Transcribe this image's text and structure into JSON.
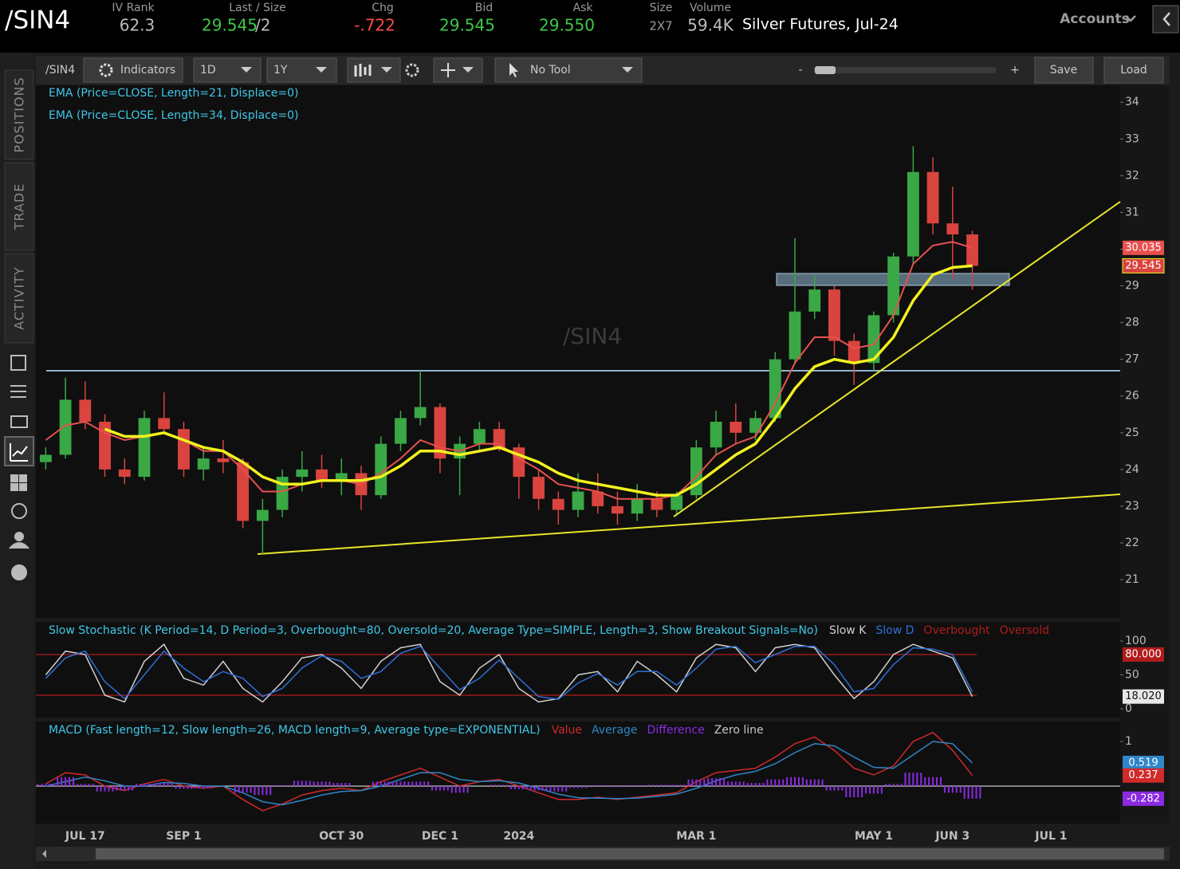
{
  "header": {
    "symbol": "/SIN4",
    "fields": [
      {
        "label": "IV Rank",
        "value": "62.3"
      },
      {
        "label": "Last / Size",
        "value": "29.545",
        "size": "/2"
      },
      {
        "label": "Chg",
        "value": "-.722"
      },
      {
        "label": "Bid",
        "value": "29.545"
      },
      {
        "label": "Ask",
        "value": "29.550"
      },
      {
        "label": "Size",
        "value": "2X7"
      },
      {
        "label": "Volume",
        "value": "59.4K"
      }
    ],
    "description": "Silver Futures, Jul-24",
    "accounts": "Accounts"
  },
  "side_tabs": [
    "POSITIONS",
    "TRADE",
    "ACTIVITY"
  ],
  "toolbar": {
    "symbol": "/SIN4",
    "indicators": "Indicators",
    "aggregation": "1D",
    "period": "1Y",
    "tool": "No Tool",
    "zoom_out": "-",
    "zoom_in": "+",
    "save": "Save",
    "load": "Load"
  },
  "chart_data": [
    {
      "type": "candlestick",
      "categories": [
        null,
        null,
        "JUL 17",
        null,
        null,
        null,
        null,
        "SEP 1",
        null,
        null,
        null,
        null,
        null,
        null,
        null,
        "OCT 30",
        null,
        null,
        null,
        null,
        "DEC 1",
        null,
        null,
        null,
        "2024",
        null,
        null,
        null,
        null,
        null,
        null,
        null,
        null,
        "MAR 1",
        null,
        null,
        null,
        null,
        null,
        null,
        null,
        null,
        "MAY 1",
        null,
        null,
        null,
        "JUN 3",
        null,
        null,
        null,
        null,
        "JUL 1",
        null,
        null,
        null
      ],
      "ylim": [
        19.96,
        34.46
      ],
      "yticks": [
        21,
        22,
        23,
        24,
        25,
        26,
        27,
        28,
        29,
        30,
        31,
        32,
        33,
        34
      ],
      "up_color": "#3aa845",
      "down_color": "#d9443f",
      "series": [
        {
          "name": "/SIN4",
          "type": "candlestick",
          "open": [
            24.2,
            24.4,
            25.9,
            25.3,
            24.0,
            23.8,
            25.4,
            25.1,
            24.0,
            24.3,
            24.2,
            22.6,
            22.9,
            23.8,
            24.0,
            23.7,
            23.9,
            23.3,
            24.7,
            25.4,
            25.7,
            24.3,
            24.7,
            25.1,
            24.6,
            23.8,
            23.2,
            22.9,
            23.4,
            23.0,
            22.8,
            23.2,
            22.9,
            23.3,
            24.6,
            25.3,
            25.0,
            25.4,
            27.0,
            28.3,
            28.9,
            27.5,
            26.9,
            28.2,
            29.8,
            32.1,
            30.7,
            30.4,
            null,
            null,
            null,
            null,
            null,
            null,
            null
          ],
          "high": [
            24.6,
            26.5,
            26.4,
            25.5,
            24.3,
            25.6,
            26.1,
            25.3,
            24.6,
            24.8,
            24.3,
            23.2,
            24.0,
            24.5,
            24.4,
            24.3,
            24.1,
            24.9,
            25.6,
            26.7,
            25.8,
            24.9,
            25.3,
            25.3,
            24.7,
            24.0,
            23.4,
            23.9,
            23.9,
            23.4,
            23.6,
            23.4,
            23.4,
            24.8,
            25.6,
            25.8,
            25.6,
            27.2,
            30.3,
            29.3,
            29.0,
            27.7,
            28.3,
            29.9,
            32.8,
            32.5,
            31.7,
            30.5,
            null,
            null,
            null,
            null,
            null,
            null,
            null
          ],
          "low": [
            24.0,
            24.3,
            25.1,
            23.8,
            23.6,
            23.7,
            25.0,
            23.8,
            23.7,
            23.9,
            22.4,
            21.7,
            22.7,
            23.4,
            23.5,
            23.3,
            22.9,
            23.2,
            24.5,
            25.2,
            23.9,
            23.3,
            24.5,
            24.5,
            23.2,
            22.9,
            22.5,
            22.7,
            22.8,
            22.5,
            22.6,
            22.7,
            22.8,
            23.2,
            24.4,
            24.7,
            24.8,
            25.3,
            26.9,
            28.1,
            27.1,
            26.3,
            26.7,
            28.0,
            29.6,
            30.4,
            29.2,
            28.9,
            null,
            null,
            null,
            null,
            null,
            null,
            null
          ],
          "close": [
            24.4,
            25.9,
            25.3,
            24.0,
            23.8,
            25.4,
            25.1,
            24.0,
            24.3,
            24.2,
            22.6,
            22.9,
            23.8,
            24.0,
            23.7,
            23.9,
            23.3,
            24.7,
            25.4,
            25.7,
            24.3,
            24.7,
            25.1,
            24.6,
            23.8,
            23.2,
            22.9,
            23.4,
            23.0,
            22.8,
            23.2,
            22.9,
            23.3,
            24.6,
            25.3,
            25.0,
            25.4,
            27.0,
            28.3,
            28.9,
            27.5,
            26.9,
            28.2,
            29.8,
            32.1,
            30.7,
            30.4,
            29.545,
            null,
            null,
            null,
            null,
            null,
            null,
            null
          ]
        },
        {
          "name": "EMA (Price=CLOSE, Length=21, Displace=0)",
          "type": "line",
          "color": "#e8504f",
          "values": [
            24.8,
            25.2,
            25.3,
            25.0,
            24.8,
            24.9,
            25.0,
            24.8,
            24.5,
            24.5,
            24.0,
            23.4,
            23.4,
            23.6,
            23.7,
            23.7,
            23.6,
            23.9,
            24.3,
            24.8,
            24.6,
            24.5,
            24.7,
            24.7,
            24.3,
            24.0,
            23.6,
            23.5,
            23.4,
            23.2,
            23.2,
            23.2,
            23.3,
            23.8,
            24.4,
            24.7,
            24.9,
            25.8,
            26.9,
            27.6,
            27.6,
            27.3,
            27.4,
            28.2,
            29.6,
            30.1,
            30.2,
            30.035,
            null,
            null,
            null,
            null,
            null,
            null,
            null
          ]
        },
        {
          "name": "EMA (Price=CLOSE, Length=34, Displace=0)",
          "type": "line",
          "color": "#f2f21e",
          "values": [
            null,
            null,
            null,
            25.1,
            24.9,
            24.9,
            25.0,
            24.8,
            24.6,
            24.5,
            24.2,
            23.8,
            23.6,
            23.6,
            23.7,
            23.7,
            23.7,
            23.8,
            24.1,
            24.5,
            24.5,
            24.4,
            24.5,
            24.6,
            24.4,
            24.2,
            23.9,
            23.7,
            23.6,
            23.5,
            23.4,
            23.3,
            23.3,
            23.6,
            24.0,
            24.4,
            24.7,
            25.4,
            26.2,
            26.8,
            27.0,
            26.9,
            27.0,
            27.6,
            28.6,
            29.3,
            29.5,
            29.545,
            null,
            null,
            null,
            null,
            null,
            null,
            null
          ]
        }
      ]
    },
    {
      "type": "line",
      "title": "Slow Stochastic (K Period=14, D Period=3, Overbought=80, Oversold=20, Average Type=SIMPLE, Length=3, Show Breakout Signals=No)",
      "ylim": [
        -12.9,
        128.2
      ],
      "yticks": [
        0,
        50,
        100
      ],
      "levels": [
        {
          "name": "Overbought",
          "value": 80,
          "label": "80.000",
          "color": "#b01c1c"
        },
        {
          "name": "Oversold",
          "value": 20,
          "color": "#b01c1c"
        }
      ],
      "series": [
        {
          "name": "Slow K",
          "type": "line",
          "color": "#cfcfcf",
          "values": [
            50,
            85,
            80,
            20,
            10,
            70,
            95,
            45,
            35,
            70,
            30,
            10,
            40,
            75,
            80,
            60,
            30,
            70,
            90,
            95,
            40,
            20,
            60,
            80,
            30,
            10,
            15,
            50,
            55,
            25,
            70,
            50,
            25,
            75,
            95,
            90,
            55,
            90,
            95,
            90,
            50,
            15,
            40,
            80,
            95,
            85,
            75,
            18.02,
            null,
            null,
            null,
            null,
            null,
            null,
            null
          ],
          "value_labels": [
            null,
            null,
            null,
            null,
            null,
            null,
            null,
            null,
            null,
            null,
            null,
            null,
            null,
            null,
            null,
            null,
            null,
            null,
            null,
            null,
            null,
            null,
            null,
            null,
            null,
            null,
            null,
            null,
            null,
            null,
            null,
            null,
            null,
            null,
            null,
            null,
            null,
            null,
            null,
            null,
            null,
            null,
            null,
            null,
            null,
            null,
            null,
            "18.020",
            null,
            null,
            null,
            null,
            null,
            null,
            null
          ]
        },
        {
          "name": "Slow D",
          "type": "line",
          "color": "#2f6fd6",
          "values": [
            45,
            75,
            85,
            40,
            15,
            50,
            85,
            60,
            40,
            55,
            45,
            18,
            30,
            60,
            78,
            70,
            45,
            55,
            82,
            92,
            60,
            28,
            45,
            72,
            45,
            18,
            14,
            38,
            52,
            35,
            55,
            55,
            35,
            60,
            88,
            92,
            68,
            80,
            92,
            92,
            65,
            25,
            30,
            65,
            90,
            88,
            80,
            25,
            null,
            null,
            null,
            null,
            null,
            null,
            null
          ]
        }
      ]
    },
    {
      "type": "line",
      "title": "MACD (Fast length=12, Slow length=26, MACD length=9, Average type=EXPONENTIAL)",
      "ylim": [
        -0.839,
        1.446
      ],
      "yticks": [
        1
      ],
      "levels": [
        {
          "name": "Zero line",
          "value": 0,
          "color": "#c8c8c8"
        }
      ],
      "series": [
        {
          "name": "Value",
          "type": "line",
          "color": "#d02a2a",
          "values": [
            0.05,
            0.3,
            0.25,
            0,
            -0.1,
            0.05,
            0.15,
            0,
            -0.05,
            0,
            -0.3,
            -0.55,
            -0.4,
            -0.2,
            -0.1,
            -0.05,
            -0.1,
            0.1,
            0.25,
            0.4,
            0.2,
            0,
            0.1,
            0.15,
            0,
            -0.15,
            -0.3,
            -0.3,
            -0.25,
            -0.3,
            -0.25,
            -0.2,
            -0.15,
            0.1,
            0.3,
            0.35,
            0.4,
            0.65,
            0.95,
            1.1,
            0.8,
            0.4,
            0.25,
            0.45,
            1.0,
            1.2,
            0.8,
            0.237,
            null,
            null,
            null,
            null,
            null,
            null,
            null
          ]
        },
        {
          "name": "Average",
          "type": "line",
          "color": "#2f86c8",
          "values": [
            0,
            0.1,
            0.2,
            0.12,
            0,
            0,
            0.08,
            0.06,
            0,
            0,
            -0.15,
            -0.35,
            -0.42,
            -0.32,
            -0.2,
            -0.12,
            -0.1,
            0,
            0.15,
            0.3,
            0.3,
            0.15,
            0.1,
            0.12,
            0.07,
            -0.05,
            -0.18,
            -0.26,
            -0.27,
            -0.28,
            -0.27,
            -0.23,
            -0.18,
            -0.05,
            0.12,
            0.25,
            0.33,
            0.5,
            0.75,
            0.95,
            0.9,
            0.65,
            0.42,
            0.4,
            0.7,
            1.0,
            0.95,
            0.519,
            null,
            null,
            null,
            null,
            null,
            null,
            null
          ]
        },
        {
          "name": "Difference",
          "type": "histogram",
          "color": "#8a2be2",
          "values": [
            0.05,
            0.2,
            0.05,
            -0.12,
            -0.1,
            0.05,
            0.07,
            -0.06,
            -0.05,
            0,
            -0.15,
            -0.2,
            0.02,
            0.12,
            0.1,
            0.07,
            0,
            0.1,
            0.1,
            0.1,
            -0.1,
            -0.15,
            0,
            0.03,
            -0.07,
            -0.1,
            -0.12,
            -0.04,
            0.02,
            -0.02,
            0.02,
            0.03,
            0.03,
            0.15,
            0.18,
            0.1,
            0.07,
            0.15,
            0.2,
            0.15,
            -0.1,
            -0.25,
            -0.17,
            0.05,
            0.3,
            0.2,
            -0.15,
            -0.282,
            null,
            null,
            null,
            null,
            null,
            null,
            null
          ]
        }
      ]
    }
  ]
}
